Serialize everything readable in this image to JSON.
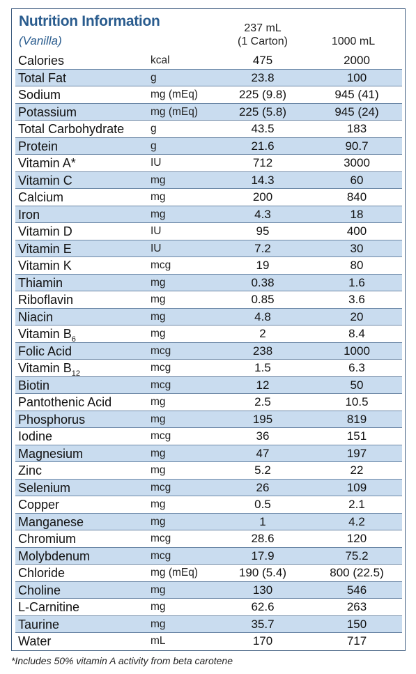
{
  "header": {
    "title": "Nutrition Information",
    "subtitle": "(Vanilla)",
    "col1_line1": "237 mL",
    "col1_line2": "(1 Carton)",
    "col2": "1000 mL"
  },
  "rows": [
    {
      "name": "Calories",
      "unit": "kcal",
      "v1": "475",
      "v2": "2000"
    },
    {
      "name": "Total Fat",
      "unit": "g",
      "v1": "23.8",
      "v2": "100"
    },
    {
      "name": "Sodium",
      "unit": "mg (mEq)",
      "v1": "225 (9.8)",
      "v2": "945 (41)"
    },
    {
      "name": "Potassium",
      "unit": "mg (mEq)",
      "v1": "225 (5.8)",
      "v2": "945 (24)"
    },
    {
      "name": "Total Carbohydrate",
      "unit": "g",
      "v1": "43.5",
      "v2": "183"
    },
    {
      "name": "Protein",
      "unit": "g",
      "v1": "21.6",
      "v2": "90.7"
    },
    {
      "name": "Vitamin A*",
      "unit": "IU",
      "v1": "712",
      "v2": "3000"
    },
    {
      "name": "Vitamin C",
      "unit": "mg",
      "v1": "14.3",
      "v2": "60"
    },
    {
      "name": "Calcium",
      "unit": "mg",
      "v1": "200",
      "v2": "840"
    },
    {
      "name": "Iron",
      "unit": "mg",
      "v1": "4.3",
      "v2": "18"
    },
    {
      "name": "Vitamin D",
      "unit": "IU",
      "v1": "95",
      "v2": "400"
    },
    {
      "name": "Vitamin E",
      "unit": "IU",
      "v1": "7.2",
      "v2": "30"
    },
    {
      "name": "Vitamin K",
      "unit": "mcg",
      "v1": "19",
      "v2": "80"
    },
    {
      "name": "Thiamin",
      "unit": "mg",
      "v1": "0.38",
      "v2": "1.6"
    },
    {
      "name": "Riboflavin",
      "unit": "mg",
      "v1": "0.85",
      "v2": "3.6"
    },
    {
      "name": "Niacin",
      "unit": "mg",
      "v1": "4.8",
      "v2": "20"
    },
    {
      "name": "Vitamin B",
      "sub": "6",
      "unit": "mg",
      "v1": "2",
      "v2": "8.4"
    },
    {
      "name": "Folic Acid",
      "unit": "mcg",
      "v1": "238",
      "v2": "1000"
    },
    {
      "name": "Vitamin B",
      "sub": "12",
      "unit": "mcg",
      "v1": "1.5",
      "v2": "6.3"
    },
    {
      "name": "Biotin",
      "unit": "mcg",
      "v1": "12",
      "v2": "50"
    },
    {
      "name": "Pantothenic Acid",
      "unit": "mg",
      "v1": "2.5",
      "v2": "10.5"
    },
    {
      "name": "Phosphorus",
      "unit": "mg",
      "v1": "195",
      "v2": "819"
    },
    {
      "name": "Iodine",
      "unit": "mcg",
      "v1": "36",
      "v2": "151"
    },
    {
      "name": "Magnesium",
      "unit": "mg",
      "v1": "47",
      "v2": "197"
    },
    {
      "name": "Zinc",
      "unit": "mg",
      "v1": "5.2",
      "v2": "22"
    },
    {
      "name": "Selenium",
      "unit": "mcg",
      "v1": "26",
      "v2": "109"
    },
    {
      "name": "Copper",
      "unit": "mg",
      "v1": "0.5",
      "v2": "2.1"
    },
    {
      "name": "Manganese",
      "unit": "mg",
      "v1": "1",
      "v2": "4.2"
    },
    {
      "name": "Chromium",
      "unit": "mcg",
      "v1": "28.6",
      "v2": "120"
    },
    {
      "name": "Molybdenum",
      "unit": "mcg",
      "v1": "17.9",
      "v2": "75.2"
    },
    {
      "name": "Chloride",
      "unit": "mg (mEq)",
      "v1": "190 (5.4)",
      "v2": "800 (22.5)"
    },
    {
      "name": "Choline",
      "unit": "mg",
      "v1": "130",
      "v2": "546"
    },
    {
      "name": "L-Carnitine",
      "unit": "mg",
      "v1": "62.6",
      "v2": "263"
    },
    {
      "name": "Taurine",
      "unit": "mg",
      "v1": "35.7",
      "v2": "150"
    },
    {
      "name": "Water",
      "unit": "mL",
      "v1": "170",
      "v2": "717"
    }
  ],
  "footnote": "*Includes 50% vitamin A activity from beta carotene",
  "colors": {
    "title": "#2a5c8e",
    "shade": "#c9dcef",
    "border": "#3f5d80"
  }
}
